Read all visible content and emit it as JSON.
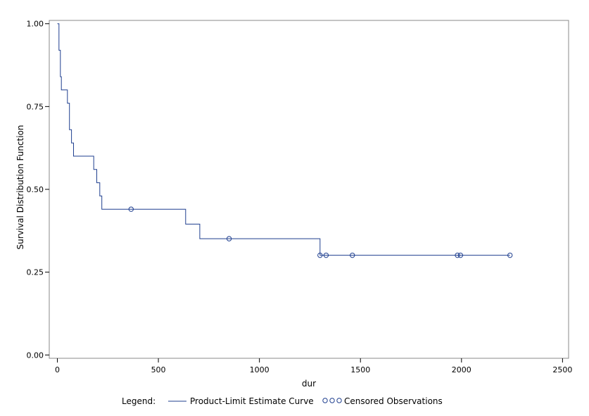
{
  "chart_data": {
    "type": "line",
    "title": "",
    "xlabel": "dur",
    "ylabel": "Survival Distribution Function",
    "xlim": [
      -40,
      2530
    ],
    "ylim": [
      -0.01,
      1.01
    ],
    "xticks": [
      0,
      500,
      1000,
      1500,
      2000,
      2500
    ],
    "yticks": [
      0.0,
      0.25,
      0.5,
      0.75,
      1.0
    ],
    "xtick_labels": [
      "0",
      "500",
      "1000",
      "1500",
      "2000",
      "2500"
    ],
    "ytick_labels": [
      "0.00",
      "0.25",
      "0.50",
      "0.75",
      "1.00"
    ],
    "grid": false,
    "line_color": "#1f3f8f",
    "series": [
      {
        "name": "Product-Limit Estimate Curve",
        "style": "step",
        "x": [
          0,
          8,
          8,
          15,
          15,
          20,
          20,
          50,
          50,
          60,
          60,
          70,
          70,
          80,
          80,
          180,
          180,
          195,
          195,
          210,
          210,
          220,
          220,
          635,
          635,
          705,
          705,
          1300,
          1300,
          2240
        ],
        "y": [
          1.0,
          1.0,
          0.92,
          0.92,
          0.84,
          0.84,
          0.8,
          0.8,
          0.76,
          0.76,
          0.68,
          0.68,
          0.64,
          0.64,
          0.6,
          0.6,
          0.56,
          0.56,
          0.52,
          0.52,
          0.48,
          0.48,
          0.44,
          0.44,
          0.395,
          0.395,
          0.351,
          0.351,
          0.301,
          0.301
        ]
      },
      {
        "name": "Censored Observations",
        "style": "marker",
        "x": [
          365,
          850,
          1300,
          1330,
          1460,
          1980,
          1995,
          2240
        ],
        "y": [
          0.44,
          0.351,
          0.301,
          0.301,
          0.301,
          0.301,
          0.301,
          0.301
        ]
      }
    ],
    "legend": {
      "label": "Legend:",
      "position": "bottom",
      "entries": [
        "Product-Limit Estimate Curve",
        "Censored Observations"
      ]
    }
  }
}
